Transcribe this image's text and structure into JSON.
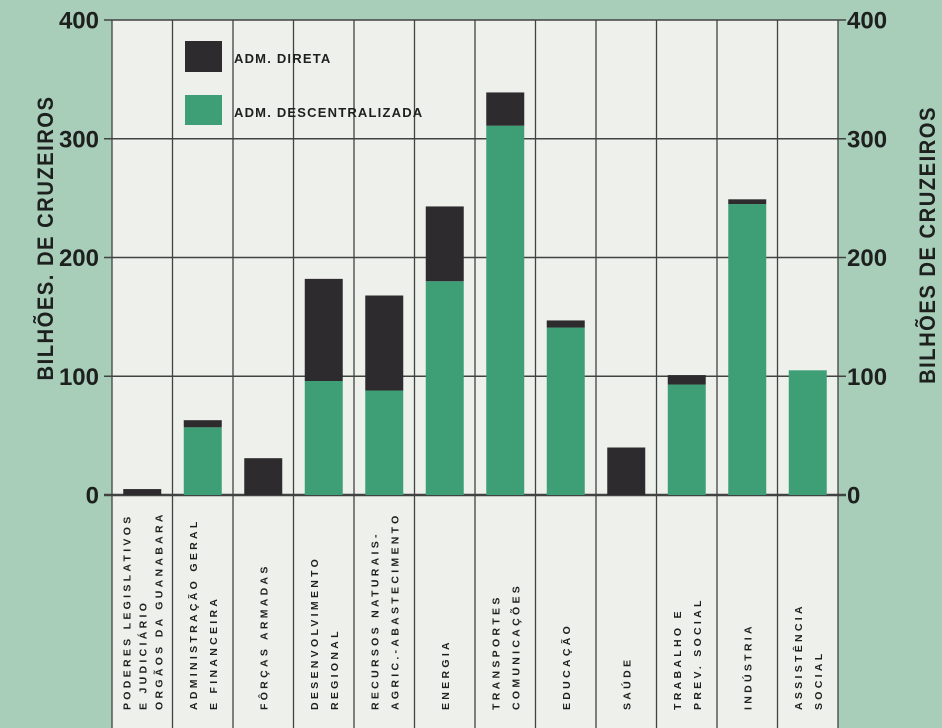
{
  "chart_data": {
    "type": "bar",
    "stacked": true,
    "categories": [
      [
        "PODERES LEGISLATIVOS",
        "E JUDICIÁRIO",
        "ORGÃOS DA GUANABARA"
      ],
      [
        "ADMINISTRAÇÃO GERAL",
        "E FINANCEIRA"
      ],
      [
        "FÔRÇAS ARMADAS"
      ],
      [
        "DESENVOLVIMENTO",
        "REGIONAL"
      ],
      [
        "RECURSOS NATURAIS-",
        "AGRIC.-ABASTECIMENTO"
      ],
      [
        "ENERGIA"
      ],
      [
        "TRANSPORTES",
        "COMUNICAÇÕES"
      ],
      [
        "EDUCAÇÃO"
      ],
      [
        "SAÚDE"
      ],
      [
        "TRABALHO E",
        "PREV. SOCIAL"
      ],
      [
        "INDÚSTRIA"
      ],
      [
        "ASSISTÊNCIA",
        "SOCIAL"
      ]
    ],
    "series": [
      {
        "name": "ADM. DIRETA",
        "color": "#2e2b2e",
        "values": [
          5,
          6,
          31,
          86,
          80,
          63,
          28,
          6,
          40,
          8,
          4,
          0
        ]
      },
      {
        "name": "ADM. DESCENTRALIZADA",
        "color": "#3e9f77",
        "values": [
          0,
          57,
          0,
          96,
          88,
          180,
          311,
          141,
          0,
          93,
          245,
          105
        ]
      }
    ],
    "ylim": [
      0,
      400
    ],
    "yticks": [
      0,
      100,
      200,
      300,
      400
    ],
    "ylabel_left": "BILHÕES. DE CRUZEIROS",
    "ylabel_right": "BILHÕES DE CRUZEIROS",
    "legend": "top-left",
    "grid": true
  },
  "colors": {
    "background": "#a8ceba",
    "panel": "#eef0eb",
    "grid": "#404341",
    "text": "#1d201e"
  }
}
